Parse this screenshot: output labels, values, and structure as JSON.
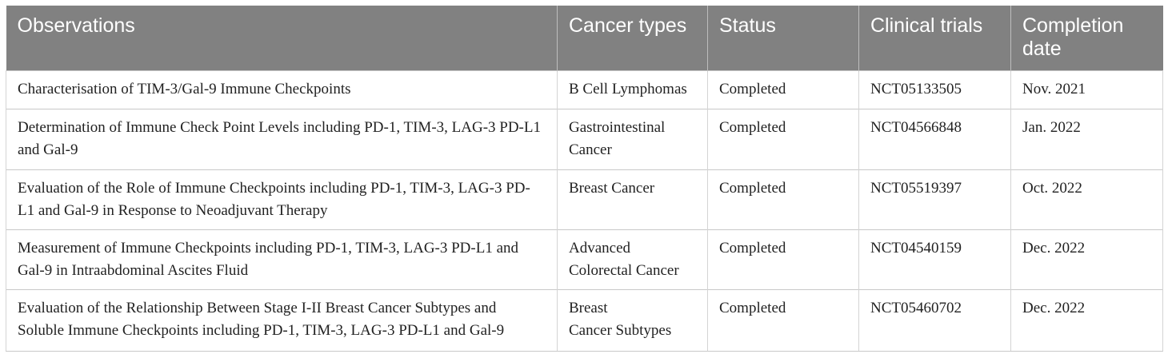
{
  "table": {
    "headers": {
      "observations": "Observations",
      "cancer_types": "Cancer types",
      "status": "Status",
      "clinical_trials": "Clinical trials",
      "completion_date_line1": "Completion",
      "completion_date_line2": "date"
    },
    "rows": [
      {
        "observations": "Characterisation of TIM-3/Gal-9 Immune Checkpoints",
        "cancer_line1": "B Cell Lymphomas",
        "cancer_line2": "",
        "status": "Completed",
        "trial": "NCT05133505",
        "date": "Nov. 2021"
      },
      {
        "observations": "Determination of Immune Check Point Levels including PD-1, TIM-3, LAG-3 PD-L1 and Gal-9",
        "cancer_line1": "Gastrointestinal",
        "cancer_line2": "Cancer",
        "status": "Completed",
        "trial": "NCT04566848",
        "date": "Jan. 2022"
      },
      {
        "observations": "Evaluation of the Role of Immune Checkpoints including PD-1, TIM-3, LAG-3 PD-L1 and Gal-9 in Response to Neoadjuvant Therapy",
        "cancer_line1": "Breast Cancer",
        "cancer_line2": "",
        "status": "Completed",
        "trial": "NCT05519397",
        "date": "Oct. 2022"
      },
      {
        "observations": "Measurement of Immune Checkpoints including PD-1, TIM-3, LAG-3 PD-L1 and Gal-9 in Intraabdominal Ascites Fluid",
        "cancer_line1": "Advanced",
        "cancer_line2": "Colorectal Cancer",
        "status": "Completed",
        "trial": "NCT04540159",
        "date": "Dec. 2022"
      },
      {
        "observations": "Evaluation of the Relationship Between Stage I-II Breast Cancer Subtypes and Soluble Immune Checkpoints including PD-1, TIM-3, LAG-3 PD-L1 and Gal-9",
        "cancer_line1": "Breast",
        "cancer_line2": "Cancer Subtypes",
        "status": "Completed",
        "trial": "NCT05460702",
        "date": "Dec. 2022"
      }
    ]
  },
  "colors": {
    "header_background": "#818181",
    "header_text": "#ffffff",
    "body_text": "#222222",
    "grid_lines": "#c8c8c8"
  }
}
